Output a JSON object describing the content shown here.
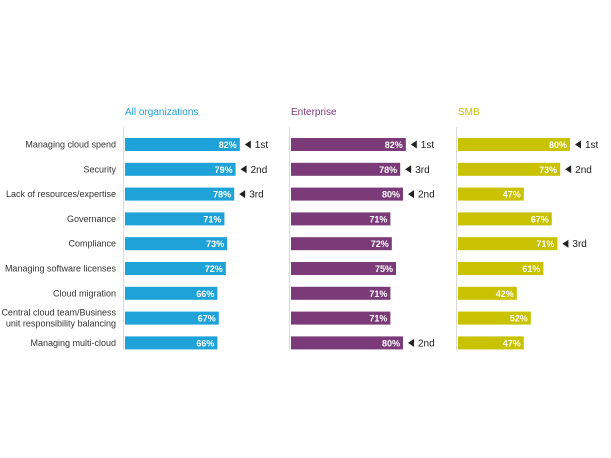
{
  "chart_data": {
    "type": "bar",
    "orientation": "horizontal",
    "title": "",
    "xlabel": "",
    "ylabel": "",
    "xlim": [
      0,
      100
    ],
    "grid": false,
    "value_suffix": "%",
    "categories": [
      "Managing cloud spend",
      "Security",
      "Lack of resources/expertise",
      "Governance",
      "Compliance",
      "Managing software licenses",
      "Cloud migration",
      [
        "Central cloud team/Business",
        "unit responsibility balancing"
      ],
      "Managing multi-cloud"
    ],
    "series": [
      {
        "name": "All organizations",
        "color": "#1ea2d8",
        "values": [
          82,
          79,
          78,
          71,
          73,
          72,
          66,
          67,
          66
        ],
        "ranks": [
          "1st",
          "2nd",
          "3rd",
          null,
          null,
          null,
          null,
          null,
          null
        ]
      },
      {
        "name": "Enterprise",
        "color": "#7a3b78",
        "values": [
          82,
          78,
          80,
          71,
          72,
          75,
          71,
          71,
          80
        ],
        "ranks": [
          "1st",
          "3rd",
          "2nd",
          null,
          null,
          null,
          null,
          null,
          "2nd"
        ]
      },
      {
        "name": "SMB",
        "color": "#c9c200",
        "values": [
          80,
          73,
          47,
          67,
          71,
          61,
          42,
          52,
          47
        ],
        "ranks": [
          "1st",
          "2nd",
          null,
          null,
          "3rd",
          null,
          null,
          null,
          null
        ]
      }
    ]
  }
}
